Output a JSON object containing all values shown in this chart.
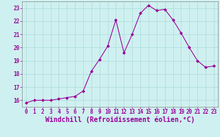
{
  "x": [
    0,
    1,
    2,
    3,
    4,
    5,
    6,
    7,
    8,
    9,
    10,
    11,
    12,
    13,
    14,
    15,
    16,
    17,
    18,
    19,
    20,
    21,
    22,
    23
  ],
  "y": [
    15.8,
    16.0,
    16.0,
    16.0,
    16.1,
    16.2,
    16.3,
    16.7,
    18.2,
    19.1,
    20.1,
    22.1,
    19.6,
    21.0,
    22.6,
    23.2,
    22.8,
    22.9,
    22.1,
    21.1,
    20.0,
    19.0,
    18.5,
    18.6
  ],
  "line_color": "#990099",
  "marker": "D",
  "marker_size": 2.0,
  "bg_color": "#cff0f0",
  "grid_color": "#aadada",
  "xlabel": "Windchill (Refroidissement éolien,°C)",
  "xlabel_color": "#990099",
  "xlim": [
    -0.5,
    23.5
  ],
  "ylim": [
    15.5,
    23.5
  ],
  "yticks": [
    16,
    17,
    18,
    19,
    20,
    21,
    22,
    23
  ],
  "xticks": [
    0,
    1,
    2,
    3,
    4,
    5,
    6,
    7,
    8,
    9,
    10,
    11,
    12,
    13,
    14,
    15,
    16,
    17,
    18,
    19,
    20,
    21,
    22,
    23
  ],
  "tick_color": "#990099",
  "tick_fontsize": 5.5,
  "xlabel_fontsize": 7.0,
  "spine_color": "#888888",
  "linewidth": 0.8
}
